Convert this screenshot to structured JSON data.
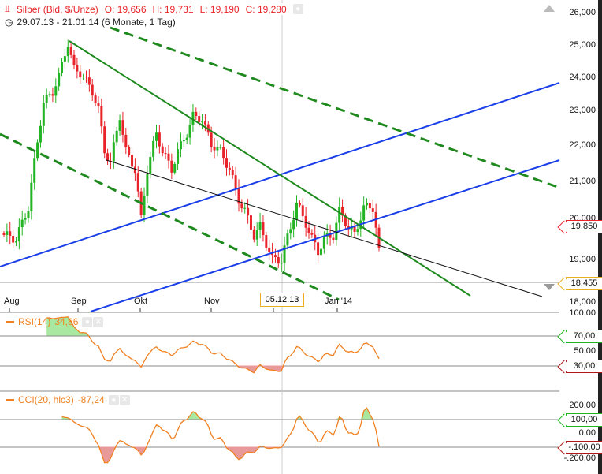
{
  "header": {
    "instrument": "Silber (Bid, $/Unze)",
    "open": "O: 19,656",
    "high": "H: 19,731",
    "low": "L: 19,190",
    "close": "C: 19,280",
    "range": "29.07.13 - 21.01.14 (6 Monate, 1 Tag)"
  },
  "price_axis": [
    "26,000",
    "25,000",
    "24,000",
    "23,000",
    "22,000",
    "21,000",
    "20,000",
    "19,000",
    "18,000"
  ],
  "price_tags": {
    "last": "19,850",
    "line": "18,455"
  },
  "date_axis": [
    "Aug",
    "Sep",
    "Okt",
    "Nov",
    "Jan '14"
  ],
  "crosshair_date": "05.12.13",
  "rsi": {
    "label": "RSI(14)",
    "value": "34,86",
    "axis": [
      "100,00",
      "50,00"
    ],
    "upper": "70,00",
    "lower": "30,00"
  },
  "cci": {
    "label": "CCI(20, hlc3)",
    "value": "-87,24",
    "axis": [
      "200,00",
      "0,00",
      "-.200,00"
    ],
    "upper": "100,00",
    "lower": "-.100,00"
  },
  "colors": {
    "up": "#22b422",
    "down": "#e8242a",
    "indicator": "#f08020",
    "trend_blue": "#1a3ee8",
    "trend_green": "#1e8a1e"
  },
  "chart_data": {
    "type": "candlestick",
    "scale": "log",
    "ylim": [
      18000,
      26000
    ],
    "close_path_by_trading_day": [
      [
        0,
        19600
      ],
      [
        4,
        19500
      ],
      [
        8,
        20300
      ],
      [
        10,
        21500
      ],
      [
        13,
        23200
      ],
      [
        16,
        23500
      ],
      [
        18,
        24000
      ],
      [
        21,
        25000
      ],
      [
        23,
        24200
      ],
      [
        26,
        24000
      ],
      [
        29,
        23500
      ],
      [
        31,
        23000
      ],
      [
        33,
        21800
      ],
      [
        35,
        21500
      ],
      [
        38,
        22800
      ],
      [
        40,
        21800
      ],
      [
        43,
        21300
      ],
      [
        45,
        20000
      ],
      [
        47,
        21300
      ],
      [
        50,
        22300
      ],
      [
        52,
        21800
      ],
      [
        55,
        21300
      ],
      [
        57,
        21800
      ],
      [
        60,
        22300
      ],
      [
        62,
        22800
      ],
      [
        65,
        22700
      ],
      [
        68,
        22000
      ],
      [
        71,
        21800
      ],
      [
        74,
        21300
      ],
      [
        77,
        20500
      ],
      [
        79,
        20200
      ],
      [
        82,
        19600
      ],
      [
        84,
        19800
      ],
      [
        88,
        19000
      ],
      [
        91,
        19000
      ],
      [
        94,
        19800
      ],
      [
        96,
        20400
      ],
      [
        99,
        19900
      ],
      [
        101,
        19500
      ],
      [
        103,
        19200
      ],
      [
        105,
        19500
      ],
      [
        108,
        19600
      ],
      [
        110,
        20200
      ],
      [
        113,
        19800
      ],
      [
        115,
        19600
      ],
      [
        118,
        20300
      ],
      [
        121,
        20300
      ],
      [
        123,
        19280
      ]
    ]
  }
}
